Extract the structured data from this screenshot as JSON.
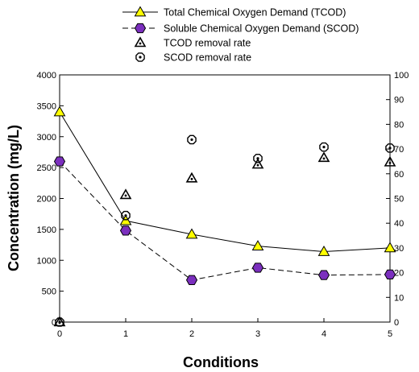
{
  "chart_data": {
    "type": "line",
    "title": "",
    "xlabel": "Conditions",
    "ylabel": "Concentration (mg/L)",
    "y2label": "",
    "x": [
      0,
      1,
      2,
      3,
      4,
      5
    ],
    "x_ticks": [
      "0",
      "1",
      "2",
      "3",
      "4",
      "5"
    ],
    "xlim": [
      0,
      5
    ],
    "ylim": [
      0,
      4000
    ],
    "y2lim": [
      0,
      100
    ],
    "y_ticks": [
      "0",
      "500",
      "1000",
      "1500",
      "2000",
      "2500",
      "3000",
      "3500",
      "4000"
    ],
    "y2_ticks": [
      "0",
      "10",
      "20",
      "30",
      "40",
      "50",
      "60",
      "70",
      "80",
      "90",
      "100"
    ],
    "grid": false,
    "legend_position": "top",
    "series": [
      {
        "name": "Total Chemical Oxygen Demand (TCOD)",
        "axis": "left",
        "marker": "triangle",
        "line": "solid",
        "color": "#ffff00",
        "values": [
          3400,
          1640,
          1420,
          1230,
          1140,
          1200
        ]
      },
      {
        "name": "Soluble Chemical Oxygen Demand (SCOD)",
        "axis": "left",
        "marker": "hexagon",
        "line": "dashed",
        "color": "#7b2fbe",
        "values": [
          2600,
          1480,
          680,
          880,
          760,
          770
        ]
      },
      {
        "name": "TCOD removal rate",
        "axis": "right",
        "marker": "open-triangle-dot",
        "line": "none",
        "color": "#000000",
        "values": [
          0,
          51.5,
          58.2,
          63.8,
          66.5,
          64.7
        ]
      },
      {
        "name": "SCOD removal rate",
        "axis": "right",
        "marker": "open-circle-dot",
        "line": "none",
        "color": "#000000",
        "values": [
          0,
          43.1,
          73.8,
          66.2,
          70.8,
          70.4
        ]
      }
    ]
  }
}
